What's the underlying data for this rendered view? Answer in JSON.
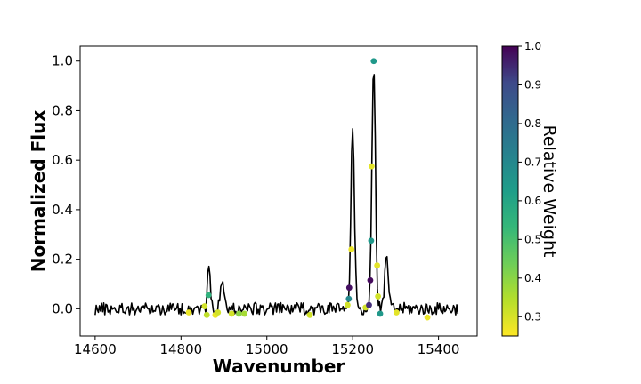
{
  "chart_data": {
    "type": "line",
    "title": "",
    "xlabel": "Wavenumber",
    "ylabel": "Normalized Flux",
    "xlim": [
      14565,
      15490
    ],
    "ylim": [
      -0.11,
      1.06
    ],
    "xticks": [
      14600,
      14800,
      15000,
      15200,
      15400
    ],
    "yticks": [
      0.0,
      0.2,
      0.4,
      0.6,
      0.8,
      1.0
    ],
    "xtick_labels": [
      "14600",
      "14800",
      "15000",
      "15200",
      "15400"
    ],
    "ytick_labels": [
      "0.0",
      "0.2",
      "0.4",
      "0.6",
      "0.8",
      "1.0"
    ],
    "grid": false,
    "line_color": "#000000",
    "spectrum": {
      "x_start": 14600,
      "x_end": 15445,
      "baseline_noise_amplitude": 0.025,
      "peaks": [
        {
          "x": 14865,
          "height": 0.18,
          "width": 3
        },
        {
          "x": 14896,
          "height": 0.115,
          "width": 4
        },
        {
          "x": 15200,
          "height": 0.74,
          "width": 4
        },
        {
          "x": 15249,
          "height": 1.0,
          "width": 4
        },
        {
          "x": 15279,
          "height": 0.22,
          "width": 4
        }
      ]
    },
    "points": [
      {
        "x": 14818,
        "y": -0.015,
        "w": 0.27
      },
      {
        "x": 14855,
        "y": 0.01,
        "w": 0.3
      },
      {
        "x": 14860,
        "y": -0.025,
        "w": 0.32
      },
      {
        "x": 14864,
        "y": 0.055,
        "w": 0.52
      },
      {
        "x": 14880,
        "y": -0.025,
        "w": 0.27
      },
      {
        "x": 14886,
        "y": -0.015,
        "w": 0.3
      },
      {
        "x": 14918,
        "y": -0.02,
        "w": 0.3
      },
      {
        "x": 14935,
        "y": -0.02,
        "w": 0.38
      },
      {
        "x": 14948,
        "y": -0.02,
        "w": 0.35
      },
      {
        "x": 15100,
        "y": -0.025,
        "w": 0.3
      },
      {
        "x": 15188,
        "y": 0.015,
        "w": 0.3
      },
      {
        "x": 15191,
        "y": 0.04,
        "w": 0.65
      },
      {
        "x": 15192,
        "y": 0.085,
        "w": 0.97
      },
      {
        "x": 15197,
        "y": 0.24,
        "w": 0.27
      },
      {
        "x": 15230,
        "y": 0.005,
        "w": 0.3
      },
      {
        "x": 15238,
        "y": 0.015,
        "w": 0.9
      },
      {
        "x": 15241,
        "y": 0.115,
        "w": 0.98
      },
      {
        "x": 15243,
        "y": 0.275,
        "w": 0.6
      },
      {
        "x": 15244,
        "y": 0.575,
        "w": 0.28
      },
      {
        "x": 15249,
        "y": 1.0,
        "w": 0.6
      },
      {
        "x": 15257,
        "y": 0.175,
        "w": 0.28
      },
      {
        "x": 15259,
        "y": 0.05,
        "w": 0.3
      },
      {
        "x": 15264,
        "y": -0.02,
        "w": 0.6
      },
      {
        "x": 15302,
        "y": -0.015,
        "w": 0.28
      },
      {
        "x": 15374,
        "y": -0.035,
        "w": 0.27
      }
    ],
    "colorbar": {
      "label": "Relative Weight",
      "colormap": "viridis",
      "range": [
        0.25,
        1.0
      ],
      "ticks": [
        0.3,
        0.4,
        0.5,
        0.6,
        0.7,
        0.8,
        0.9,
        1.0
      ],
      "tick_labels": [
        "0.3",
        "0.4",
        "0.5",
        "0.6",
        "0.7",
        "0.8",
        "0.9",
        "1.0"
      ]
    }
  }
}
